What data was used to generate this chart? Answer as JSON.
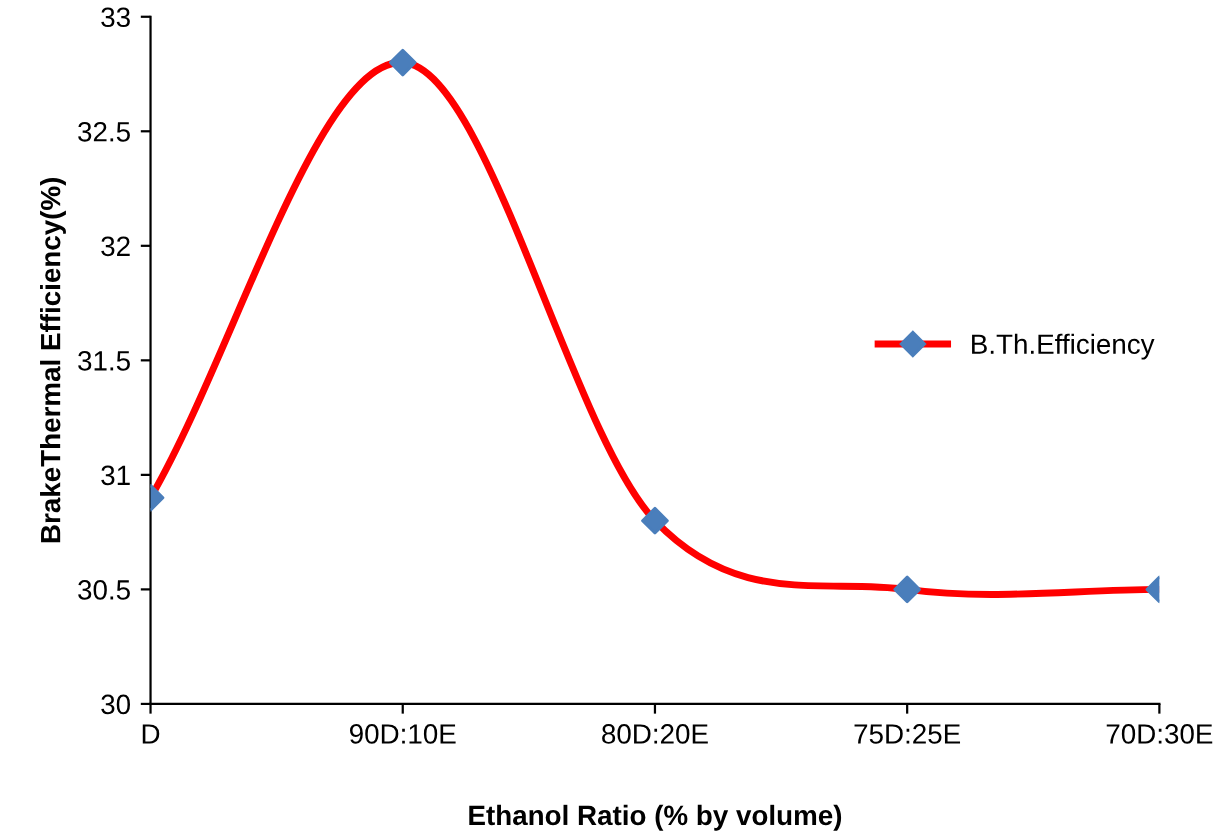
{
  "chart_data": {
    "type": "line",
    "xlabel": "Ethanol Ratio (% by volume)",
    "ylabel": "BrakeThermal Efficiency(%)",
    "categories": [
      "D",
      "90D:10E",
      "80D:20E",
      "75D:25E",
      "70D:30E"
    ],
    "series": [
      {
        "name": "B.Th.Efficiency",
        "color": "#ff0000",
        "colors": [
          "#4a7ebb",
          "#4a7ebb",
          "#4a7ebb",
          "#4a7ebb",
          "#4a7ebb"
        ],
        "values": [
          30.9,
          32.8,
          30.8,
          30.5,
          30.5
        ]
      }
    ],
    "ylim": [
      30,
      33
    ],
    "yticks": [
      30,
      30.5,
      31,
      31.5,
      32,
      32.5,
      33
    ],
    "grid": false,
    "legend": "right",
    "marker": "diamond",
    "line_style": "solid"
  }
}
